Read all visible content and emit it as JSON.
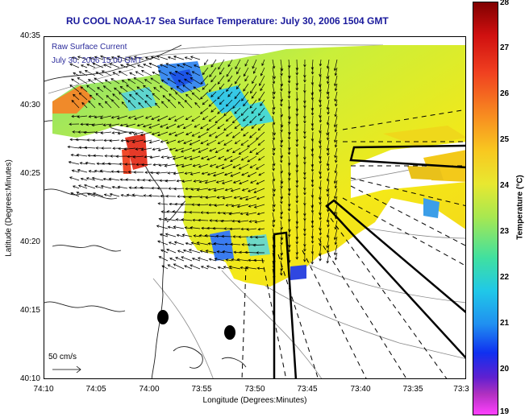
{
  "title": "RU COOL  NOAA-17  Sea Surface Temperature:  July 30, 2006 1504 GMT",
  "legend": {
    "line1": "Raw Surface Current",
    "line2": "July 30, 2006 15:00 GMT"
  },
  "scale_label": "50 cm/s",
  "axes": {
    "ylabel": "Latitude (Degrees:Minutes)",
    "xlabel": "Longitude (Degrees:Minutes)",
    "yticks": [
      "40:35",
      "40:30",
      "40:25",
      "40:20",
      "40:15",
      "40:10"
    ],
    "xticks": [
      "74:10",
      "74:05",
      "74:00",
      "73:55",
      "73:50",
      "73:45",
      "73:40",
      "73:35",
      "73:3"
    ]
  },
  "colorbar": {
    "label": "Temperature (°C)",
    "ticks": [
      "28",
      "27",
      "26",
      "25",
      "24",
      "23",
      "22",
      "21",
      "20",
      "19"
    ],
    "min": 19,
    "max": 28
  },
  "colors": {
    "title": "#1a1a9c",
    "legend_text": "#2c2c9c"
  }
}
